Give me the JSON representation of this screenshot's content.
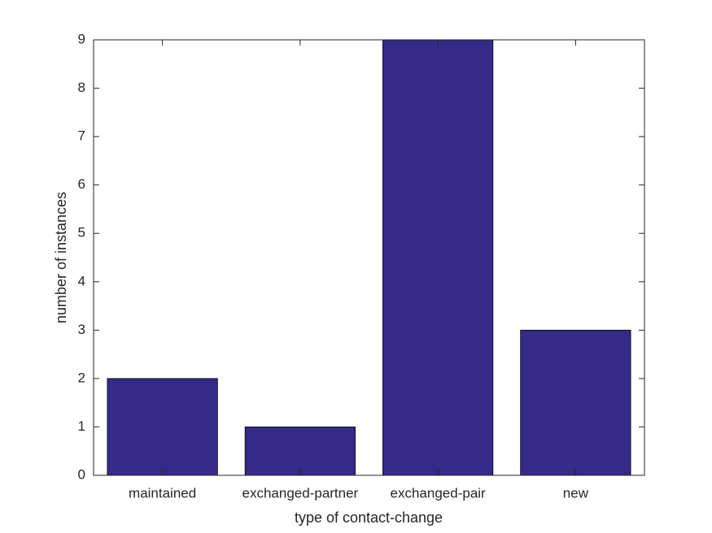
{
  "chart_data": {
    "type": "bar",
    "categories": [
      "maintained",
      "exchanged-partner",
      "exchanged-pair",
      "new"
    ],
    "values": [
      2,
      1,
      9,
      3
    ],
    "color": "#352a87",
    "xlabel": "type of contact-change",
    "ylabel": "number of instances",
    "ylim": [
      0,
      9
    ],
    "yticks": [
      0,
      1,
      2,
      3,
      4,
      5,
      6,
      7,
      8,
      9
    ],
    "grid": false
  }
}
